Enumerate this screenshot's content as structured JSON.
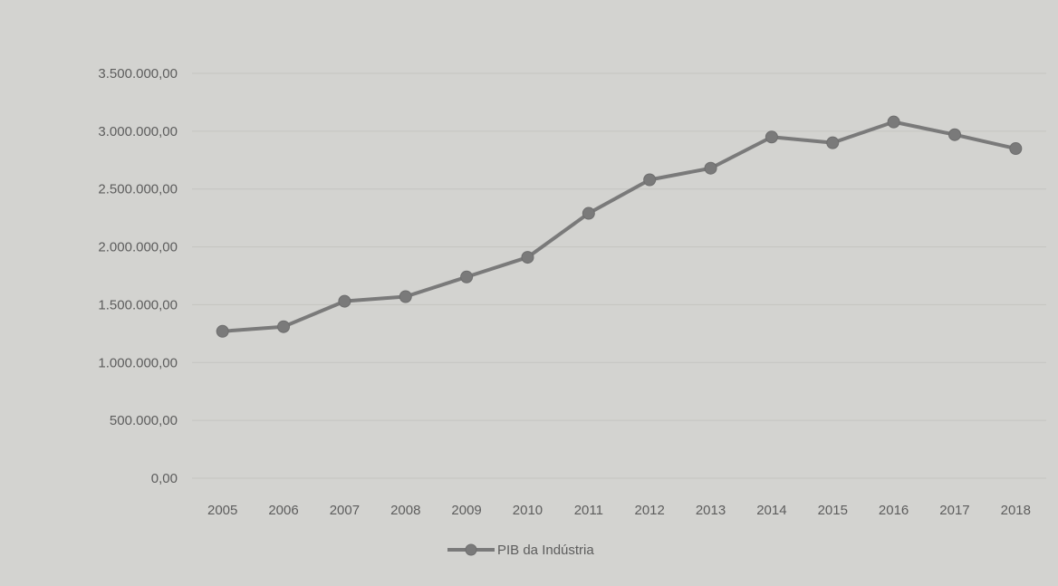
{
  "chart_data": {
    "type": "line",
    "title": "",
    "xlabel": "",
    "ylabel": "",
    "x": [
      "2005",
      "2006",
      "2007",
      "2008",
      "2009",
      "2010",
      "2011",
      "2012",
      "2013",
      "2014",
      "2015",
      "2016",
      "2017",
      "2018"
    ],
    "series": [
      {
        "name": "PIB da Indústria",
        "color": "#7a7a7a",
        "values": [
          1270000,
          1310000,
          1530000,
          1570000,
          1740000,
          1910000,
          2290000,
          2580000,
          2680000,
          2950000,
          2900000,
          3080000,
          2970000,
          2850000
        ]
      }
    ],
    "yticks": [
      {
        "value": 0,
        "label": "0,00"
      },
      {
        "value": 500000,
        "label": "500.000,00"
      },
      {
        "value": 1000000,
        "label": "1.000.000,00"
      },
      {
        "value": 1500000,
        "label": "1.500.000,00"
      },
      {
        "value": 2000000,
        "label": "2.000.000,00"
      },
      {
        "value": 2500000,
        "label": "2.500.000,00"
      },
      {
        "value": 3000000,
        "label": "3.000.000,00"
      },
      {
        "value": 3500000,
        "label": "3.500.000,00"
      }
    ],
    "ylim": [
      0,
      3500000
    ],
    "grid": true,
    "legend_position": "bottom"
  }
}
